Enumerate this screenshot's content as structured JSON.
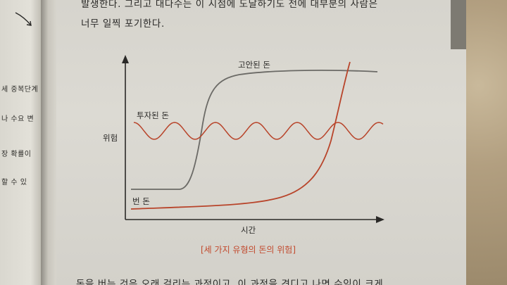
{
  "left_page": {
    "fragments": [
      "세 중복단계",
      "나 수요 변",
      "장 확률이",
      "할 수 있"
    ]
  },
  "body": {
    "line1": "발생한다. 그리고 대다수는 이 시점에 도달하기도 전에 대부분의 사람은",
    "line2": "너무 일찍 포기한다.",
    "bottom_line": "돈을 버는 것은 오래 걸리는 과정이고, 이 과정을 견디고 나면 수익이 크게"
  },
  "figure": {
    "labels": {
      "secured": "고안된 돈",
      "invested": "투자된 돈",
      "earned": "번 돈",
      "y_axis": "위험",
      "x_axis": "시간"
    },
    "caption": "[세 가지 유형의 돈의 위험]",
    "colors": {
      "gray_curve": "#6b6a66",
      "red_curve": "#b8442a",
      "axis": "#2a2927",
      "caption": "#c24a2e"
    }
  }
}
